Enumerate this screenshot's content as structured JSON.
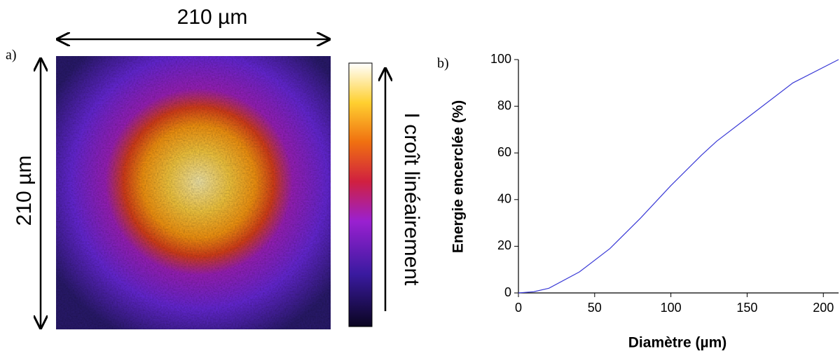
{
  "panel_a": {
    "label": "a)",
    "width_label": "210 µm",
    "height_label": "210 µm",
    "colorbar_label": "I croît linéairement"
  },
  "chart_data": {
    "type": "line",
    "panel_label": "b)",
    "x_label": "Diamètre (µm)",
    "y_label": "Energie encerclée (%)",
    "x": [
      0,
      10,
      20,
      40,
      60,
      80,
      100,
      120,
      130,
      150,
      180,
      210
    ],
    "values": [
      0,
      0.5,
      2,
      9,
      19,
      32,
      46,
      59,
      65,
      75,
      90,
      100
    ],
    "color": "#3a3ad6",
    "xlim": [
      0,
      210
    ],
    "xticks": [
      0,
      50,
      100,
      150,
      200
    ],
    "ylim": [
      0,
      100
    ],
    "yticks": [
      0,
      20,
      40,
      60,
      80,
      100
    ]
  }
}
